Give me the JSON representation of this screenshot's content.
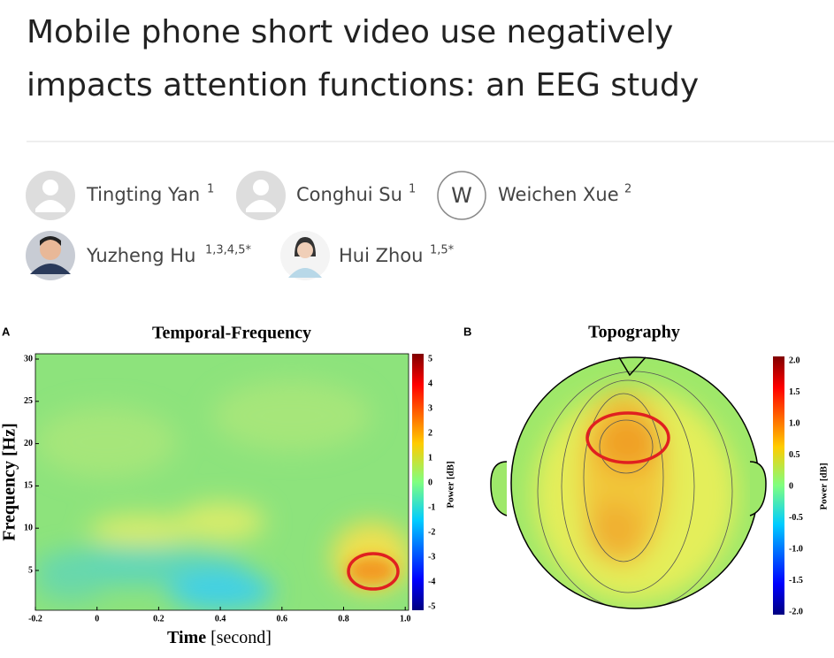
{
  "header": {
    "title_line1": "Mobile phone short video use negatively",
    "title_line2": "impacts attention functions: an EEG study"
  },
  "authors": [
    {
      "name": "Tingting Yan",
      "affiliations": "1"
    },
    {
      "name": "Conghui Su",
      "affiliations": "1"
    },
    {
      "name": "Weichen Xue",
      "affiliations": "2",
      "initial": "W"
    },
    {
      "name": "Yuzheng Hu",
      "affiliations": "1,3,4,5*"
    },
    {
      "name": "Hui Zhou",
      "affiliations": "1,5*"
    }
  ],
  "figure": {
    "panels": [
      {
        "label": "A",
        "title": "Temporal-Frequency",
        "xlabel": "Time",
        "xunit": "[second]",
        "ylabel": "Frequency [Hz]",
        "xticks": [
          "-0.2",
          "0",
          "0.2",
          "0.4",
          "0.6",
          "0.8",
          "1.0"
        ],
        "yticks": [
          "30",
          "25",
          "20",
          "15",
          "10",
          "5"
        ],
        "colorbar_ticks": [
          "5",
          "4",
          "3",
          "2",
          "1",
          "0",
          "-1",
          "-2",
          "-3",
          "-4",
          "-5"
        ],
        "colorbar_label": "Power [dB]"
      },
      {
        "label": "B",
        "title": "Topography",
        "colorbar_ticks": [
          "2.0",
          "1.5",
          "1.0",
          "0.5",
          "0",
          "-0.5",
          "-1.0",
          "-1.5",
          "-2.0"
        ],
        "colorbar_label": "Power [dB]"
      }
    ]
  }
}
